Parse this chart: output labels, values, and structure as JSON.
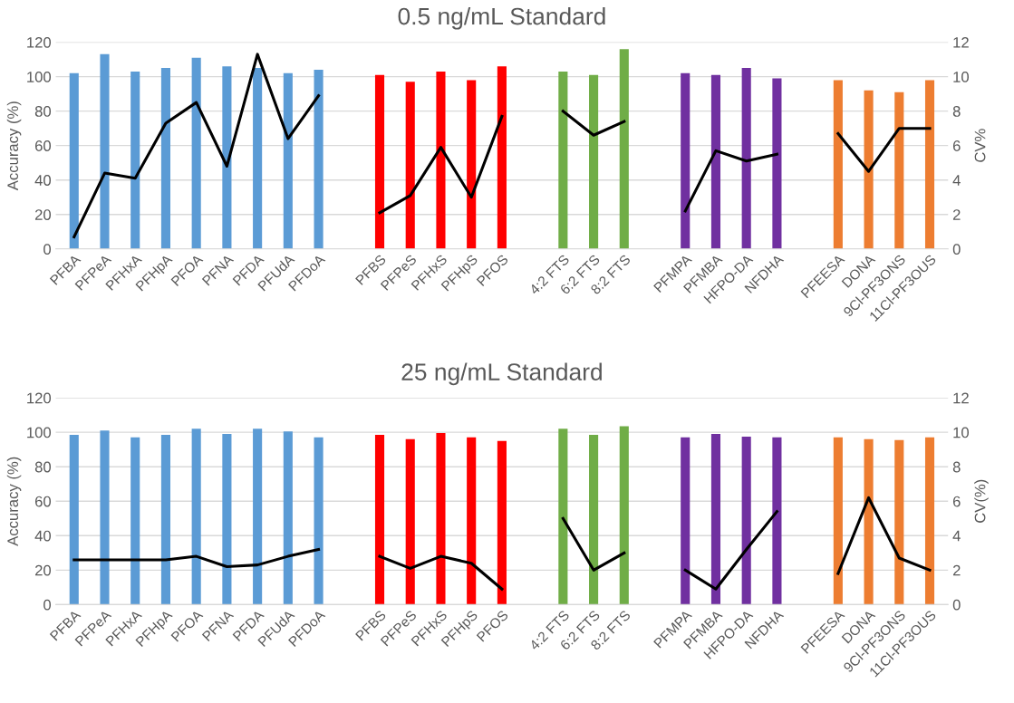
{
  "chart_data": [
    {
      "type": "bar",
      "title": "0.5 ng/mL Standard",
      "ylabel": "Accuracy (%)",
      "y2label": "CV%",
      "categories": [
        "PFBA",
        "PFPeA",
        "PFHxA",
        "PFHpA",
        "PFOA",
        "PFNA",
        "PFDA",
        "PFUdA",
        "PFDoA",
        null,
        "PFBS",
        "PFPeS",
        "PFHxS",
        "PFHpS",
        "PFOS",
        null,
        "4:2 FTS",
        "6:2 FTS",
        "8:2 FTS",
        null,
        "PFMPA",
        "PFMBA",
        "HFPO-DA",
        "NFDHA",
        null,
        "PFEESA",
        "DONA",
        "9Cl-PF3ONS",
        "11Cl-PF3OUS"
      ],
      "series": [
        {
          "colors": [
            "#5b9bd5",
            "#5b9bd5",
            "#5b9bd5",
            "#5b9bd5",
            "#5b9bd5",
            "#5b9bd5",
            "#5b9bd5",
            "#5b9bd5",
            "#5b9bd5",
            null,
            "#ff0000",
            "#ff0000",
            "#ff0000",
            "#ff0000",
            "#ff0000",
            null,
            "#70ad47",
            "#70ad47",
            "#70ad47",
            null,
            "#7030a0",
            "#7030a0",
            "#7030a0",
            "#7030a0",
            null,
            "#ed7d31",
            "#ed7d31",
            "#ed7d31",
            "#ed7d31"
          ],
          "values": [
            102,
            113,
            103,
            105,
            111,
            106,
            105,
            102,
            104,
            null,
            101,
            97,
            103,
            98,
            106,
            null,
            103,
            101,
            116,
            null,
            102,
            101,
            105,
            99,
            null,
            98,
            92,
            91,
            98
          ]
        },
        {
          "type": "line",
          "axis": "y2",
          "color": "#000000",
          "values": [
            0.7,
            4.4,
            4.1,
            7.3,
            8.5,
            4.8,
            11.3,
            6.4,
            8.9,
            null,
            2.1,
            3.1,
            5.9,
            3.0,
            7.7,
            null,
            8.0,
            6.6,
            7.4,
            null,
            2.2,
            5.7,
            5.1,
            5.5,
            null,
            6.7,
            4.5,
            7.0,
            7.0
          ]
        }
      ],
      "ylim": [
        0,
        120
      ],
      "yticks": [
        0,
        20,
        40,
        60,
        80,
        100,
        120
      ],
      "y2lim": [
        0,
        12
      ],
      "y2ticks": [
        0,
        2,
        4,
        6,
        8,
        10,
        12
      ],
      "grid": "y",
      "marker": "none",
      "line_style": "solid"
    },
    {
      "type": "bar",
      "title": "25 ng/mL Standard",
      "ylabel": "Accuracy (%)",
      "y2label": "CV(%)",
      "categories": [
        "PFBA",
        "PFPeA",
        "PFHxA",
        "PFHpA",
        "PFOA",
        "PFNA",
        "PFDA",
        "PFUdA",
        "PFDoA",
        null,
        "PFBS",
        "PFPeS",
        "PFHxS",
        "PFHpS",
        "PFOS",
        null,
        "4:2 FTS",
        "6:2 FTS",
        "8:2 FTS",
        null,
        "PFMPA",
        "PFMBA",
        "HFPO-DA",
        "NFDHA",
        null,
        "PFEESA",
        "DONA",
        "9Cl-PF3ONS",
        "11Cl-PF3OUS"
      ],
      "series": [
        {
          "colors": [
            "#5b9bd5",
            "#5b9bd5",
            "#5b9bd5",
            "#5b9bd5",
            "#5b9bd5",
            "#5b9bd5",
            "#5b9bd5",
            "#5b9bd5",
            "#5b9bd5",
            null,
            "#ff0000",
            "#ff0000",
            "#ff0000",
            "#ff0000",
            "#ff0000",
            null,
            "#70ad47",
            "#70ad47",
            "#70ad47",
            null,
            "#7030a0",
            "#7030a0",
            "#7030a0",
            "#7030a0",
            null,
            "#ed7d31",
            "#ed7d31",
            "#ed7d31",
            "#ed7d31"
          ],
          "values": [
            98.5,
            101,
            97,
            98.5,
            102,
            99,
            102,
            100.5,
            97,
            null,
            98.5,
            96,
            99.5,
            97,
            95,
            null,
            102,
            98.5,
            103.5,
            null,
            97,
            99,
            97.5,
            97,
            null,
            97,
            96,
            95.5,
            97
          ]
        },
        {
          "type": "line",
          "axis": "y2",
          "color": "#000000",
          "values": [
            2.6,
            2.6,
            2.6,
            2.6,
            2.8,
            2.2,
            2.3,
            2.8,
            3.2,
            null,
            2.8,
            2.1,
            2.8,
            2.4,
            0.9,
            null,
            5.0,
            2.0,
            3.0,
            null,
            2.0,
            0.9,
            3.2,
            5.4,
            null,
            1.8,
            6.2,
            2.7,
            2.0
          ]
        }
      ],
      "ylim": [
        0,
        120
      ],
      "yticks": [
        0,
        20,
        40,
        60,
        80,
        100,
        120
      ],
      "y2lim": [
        0,
        12
      ],
      "y2ticks": [
        0,
        2,
        4,
        6,
        8,
        10,
        12
      ],
      "grid": "y",
      "marker": "none",
      "line_style": "solid"
    }
  ]
}
